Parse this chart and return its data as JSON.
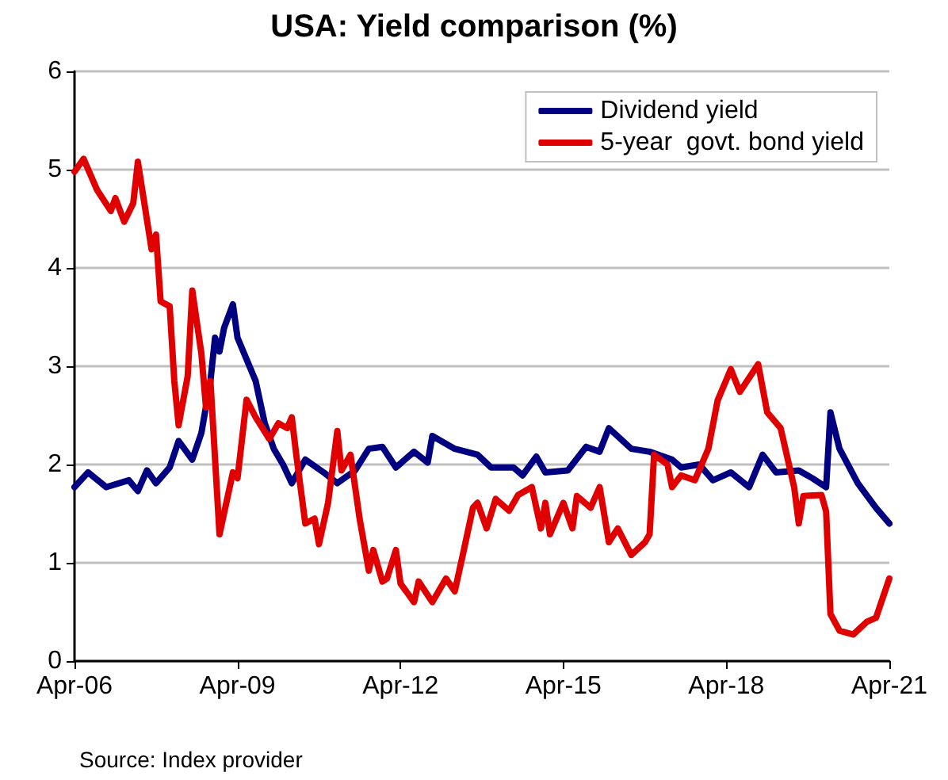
{
  "chart_data": {
    "type": "line",
    "title": "USA: Yield comparison (%)",
    "series": [
      {
        "name": "Dividend yield",
        "color": "#000080",
        "x": [
          "2006-04",
          "2006-07",
          "2006-11",
          "2007-04",
          "2007-06",
          "2007-08",
          "2007-10",
          "2008-01",
          "2008-03",
          "2008-06",
          "2008-08",
          "2008-10",
          "2008-11",
          "2008-12",
          "2009-01",
          "2009-03",
          "2009-04",
          "2009-08",
          "2009-10",
          "2009-12",
          "2010-02",
          "2010-04",
          "2010-07",
          "2010-11",
          "2011-02",
          "2011-06",
          "2011-09",
          "2011-12",
          "2012-03",
          "2012-07",
          "2012-10",
          "2012-11",
          "2013-04",
          "2013-09",
          "2013-12",
          "2014-05",
          "2014-07",
          "2014-10",
          "2014-12",
          "2015-05",
          "2015-09",
          "2015-12",
          "2016-02",
          "2016-07",
          "2016-11",
          "2017-04",
          "2017-06",
          "2017-10",
          "2018-01",
          "2018-05",
          "2018-09",
          "2018-12",
          "2019-03",
          "2019-08",
          "2019-11",
          "2020-02",
          "2020-03",
          "2020-05",
          "2020-09",
          "2021-01",
          "2021-04"
        ],
        "values": [
          1.77,
          1.92,
          1.77,
          1.84,
          1.73,
          1.94,
          1.81,
          1.97,
          2.24,
          2.05,
          2.32,
          2.85,
          3.29,
          3.15,
          3.39,
          3.63,
          3.29,
          2.85,
          2.42,
          2.16,
          2.0,
          1.81,
          2.05,
          1.92,
          1.81,
          1.94,
          2.16,
          2.18,
          1.97,
          2.13,
          2.02,
          2.29,
          2.16,
          2.1,
          1.97,
          1.97,
          1.89,
          2.08,
          1.92,
          1.94,
          2.18,
          2.13,
          2.37,
          2.16,
          2.13,
          2.05,
          1.97,
          2.0,
          1.84,
          1.92,
          1.77,
          2.1,
          1.92,
          1.94,
          1.86,
          1.77,
          2.53,
          2.16,
          1.81,
          1.56,
          1.4
        ]
      },
      {
        "name": "5-year  govt. bond yield",
        "color": "#e00000",
        "x": [
          "2006-04",
          "2006-06",
          "2006-09",
          "2006-12",
          "2007-01",
          "2007-03",
          "2007-05",
          "2007-06",
          "2007-09",
          "2007-10",
          "2007-11",
          "2008-01",
          "2008-02",
          "2008-03",
          "2008-05",
          "2008-06",
          "2008-08",
          "2008-09",
          "2008-10",
          "2008-12",
          "2009-03",
          "2009-04",
          "2009-06",
          "2009-08",
          "2009-11",
          "2010-01",
          "2010-03",
          "2010-04",
          "2010-05",
          "2010-07",
          "2010-09",
          "2010-10",
          "2010-12",
          "2011-02",
          "2011-03",
          "2011-05",
          "2011-07",
          "2011-09",
          "2011-10",
          "2011-12",
          "2012-01",
          "2012-03",
          "2012-04",
          "2012-07",
          "2012-08",
          "2012-11",
          "2013-02",
          "2013-04",
          "2013-06",
          "2013-08",
          "2013-09",
          "2013-11",
          "2014-01",
          "2014-04",
          "2014-06",
          "2014-09",
          "2014-11",
          "2014-12",
          "2015-01",
          "2015-04",
          "2015-06",
          "2015-07",
          "2015-10",
          "2015-12",
          "2016-02",
          "2016-04",
          "2016-07",
          "2016-10",
          "2016-11",
          "2016-12",
          "2017-03",
          "2017-04",
          "2017-06",
          "2017-09",
          "2017-12",
          "2018-02",
          "2018-05",
          "2018-07",
          "2018-11",
          "2019-01",
          "2019-04",
          "2019-07",
          "2019-08",
          "2019-09",
          "2020-01",
          "2020-02",
          "2020-03",
          "2020-05",
          "2020-08",
          "2020-11",
          "2021-01",
          "2021-04"
        ],
        "values": [
          4.98,
          5.11,
          4.79,
          4.58,
          4.71,
          4.47,
          4.66,
          5.08,
          4.19,
          4.34,
          3.66,
          3.61,
          2.85,
          2.4,
          2.9,
          3.77,
          3.13,
          2.58,
          2.85,
          1.29,
          1.92,
          1.86,
          2.66,
          2.48,
          2.26,
          2.42,
          2.37,
          2.48,
          2.1,
          1.4,
          1.45,
          1.19,
          1.61,
          2.34,
          1.94,
          2.1,
          1.45,
          0.92,
          1.13,
          0.81,
          0.84,
          1.13,
          0.79,
          0.6,
          0.81,
          0.6,
          0.84,
          0.71,
          1.13,
          1.56,
          1.61,
          1.35,
          1.65,
          1.53,
          1.69,
          1.77,
          1.35,
          1.61,
          1.29,
          1.61,
          1.35,
          1.68,
          1.56,
          1.77,
          1.21,
          1.35,
          1.08,
          1.21,
          1.29,
          2.1,
          2.0,
          1.77,
          1.89,
          1.84,
          2.16,
          2.65,
          2.97,
          2.74,
          3.02,
          2.53,
          2.37,
          1.77,
          1.4,
          1.68,
          1.69,
          1.52,
          0.48,
          0.31,
          0.27,
          0.4,
          0.44,
          0.84
        ]
      }
    ],
    "xlim": [
      "2006-04",
      "2021-04"
    ],
    "xticks": [
      {
        "value": "2006-04",
        "label": "Apr-06"
      },
      {
        "value": "2009-04",
        "label": "Apr-09"
      },
      {
        "value": "2012-04",
        "label": "Apr-12"
      },
      {
        "value": "2015-04",
        "label": "Apr-15"
      },
      {
        "value": "2018-04",
        "label": "Apr-18"
      },
      {
        "value": "2021-04",
        "label": "Apr-21"
      }
    ],
    "ylim": [
      0,
      6
    ],
    "yticks": [
      0,
      1,
      2,
      3,
      4,
      5,
      6
    ],
    "grid": "y",
    "legend": "top right",
    "marker": "none",
    "line_style": "solid",
    "annotations": [
      "Source: Index provider"
    ]
  }
}
